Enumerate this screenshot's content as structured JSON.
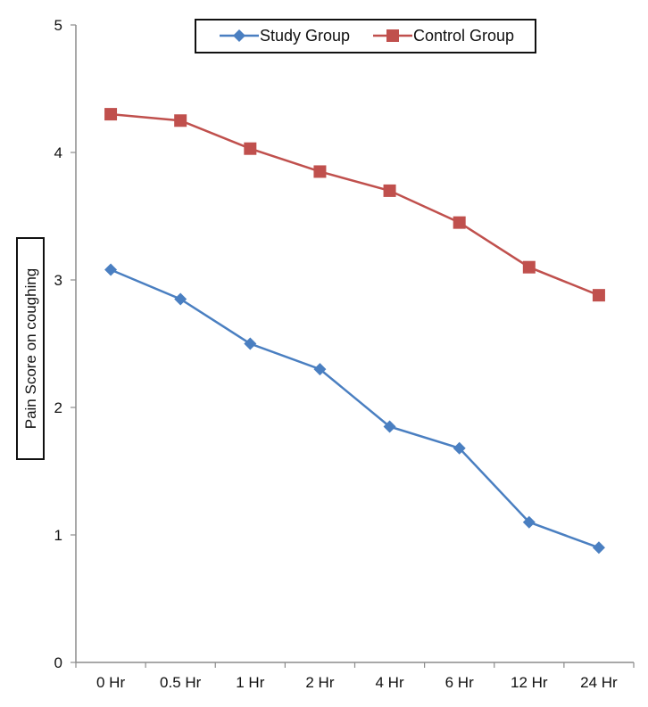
{
  "chart_data": {
    "type": "line",
    "title": "",
    "xlabel": "",
    "ylabel": "Pain Score on coughing",
    "ylim": [
      0,
      5
    ],
    "yticks": [
      0,
      1,
      2,
      3,
      4,
      5
    ],
    "categories": [
      "0 Hr",
      "0.5 Hr",
      "1 Hr",
      "2 Hr",
      "4 Hr",
      "6 Hr",
      "12 Hr",
      "24 Hr"
    ],
    "series": [
      {
        "name": "Study Group",
        "marker": "diamond",
        "color": "#4a7fc1",
        "values": [
          3.08,
          2.85,
          2.5,
          2.3,
          1.85,
          1.68,
          1.1,
          0.9
        ]
      },
      {
        "name": "Control Group",
        "marker": "square",
        "color": "#c0504d",
        "values": [
          4.3,
          4.25,
          4.03,
          3.85,
          3.7,
          3.45,
          3.1,
          2.88
        ]
      }
    ],
    "legend_position": "top-right",
    "grid": false
  }
}
